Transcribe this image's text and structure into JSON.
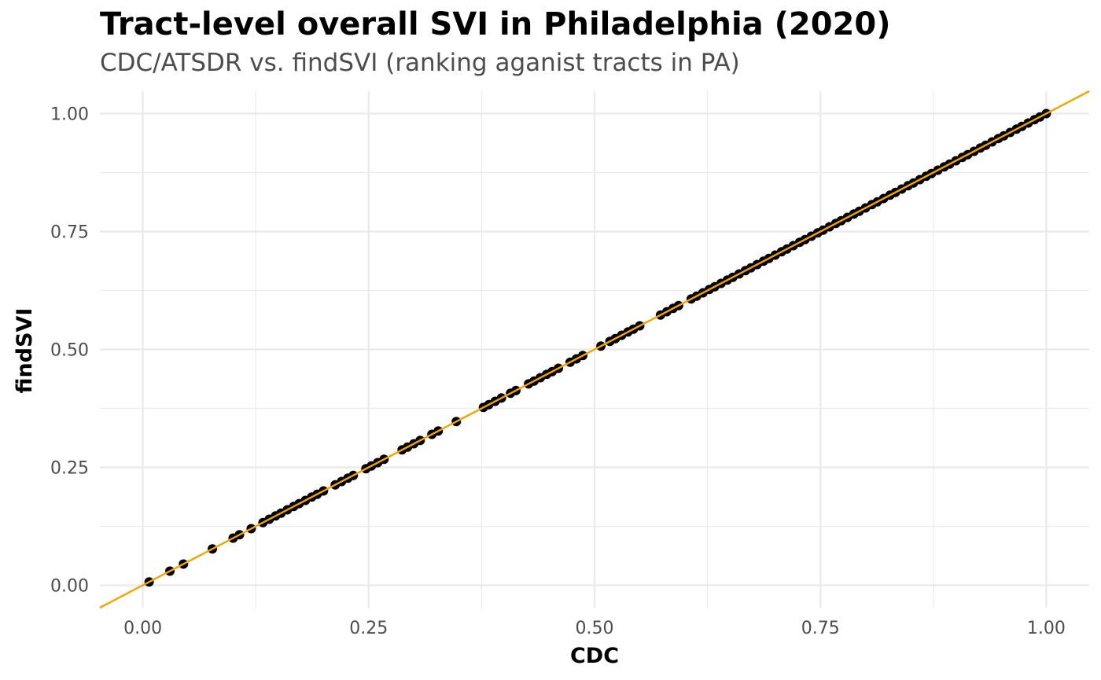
{
  "title": "Tract-level overall SVI in Philadelphia (2020)",
  "subtitle": "CDC/ATSDR vs. findSVI (ranking aganist tracts in PA)",
  "chart_data": {
    "type": "scatter",
    "title": "Tract-level overall SVI in Philadelphia (2020)",
    "subtitle": "CDC/ATSDR vs. findSVI (ranking aganist tracts in PA)",
    "xlabel": "CDC",
    "ylabel": "findSVI",
    "xlim": [
      -0.0475,
      1.0475
    ],
    "ylim": [
      -0.0475,
      1.0475
    ],
    "x_ticks": [
      "0.00",
      "0.25",
      "0.50",
      "0.75",
      "1.00"
    ],
    "y_ticks": [
      "0.00",
      "0.25",
      "0.50",
      "0.75",
      "1.00"
    ],
    "grid": true,
    "reference_line": {
      "slope": 1,
      "intercept": 0,
      "color": "#f5a300"
    },
    "point_color": "#000000",
    "series": [
      {
        "x": [
          0.007,
          0.03,
          0.045,
          0.077,
          0.1,
          0.107,
          0.12,
          0.133,
          0.14,
          0.147,
          0.153,
          0.16,
          0.167,
          0.173,
          0.18,
          0.187,
          0.193,
          0.2,
          0.213,
          0.22,
          0.227,
          0.233,
          0.247,
          0.253,
          0.26,
          0.267,
          0.287,
          0.293,
          0.3,
          0.307,
          0.32,
          0.327,
          0.347,
          0.377,
          0.383,
          0.39,
          0.397,
          0.407,
          0.413,
          0.427,
          0.433,
          0.44,
          0.447,
          0.453,
          0.46,
          0.473,
          0.48,
          0.487,
          0.507,
          0.517,
          0.523,
          0.53,
          0.537,
          0.543,
          0.55,
          0.573,
          0.58,
          0.587,
          0.593,
          0.607,
          0.613,
          0.62,
          0.627,
          0.633,
          0.64,
          0.647,
          0.653,
          0.66,
          0.667,
          0.673,
          0.68,
          0.687,
          0.693,
          0.7,
          0.707,
          0.713,
          0.72,
          0.727,
          0.733,
          0.74,
          0.747,
          0.753,
          0.76,
          0.767,
          0.773,
          0.78,
          0.787,
          0.793,
          0.8,
          0.807,
          0.813,
          0.82,
          0.827,
          0.833,
          0.84,
          0.847,
          0.853,
          0.86,
          0.867,
          0.873,
          0.88,
          0.887,
          0.893,
          0.9,
          0.907,
          0.913,
          0.92,
          0.927,
          0.933,
          0.94,
          0.947,
          0.953,
          0.96,
          0.967,
          0.973,
          0.98,
          0.987,
          0.993,
          1.0
        ],
        "y": [
          0.007,
          0.03,
          0.045,
          0.077,
          0.1,
          0.107,
          0.12,
          0.133,
          0.14,
          0.147,
          0.153,
          0.16,
          0.167,
          0.173,
          0.18,
          0.187,
          0.193,
          0.2,
          0.213,
          0.22,
          0.227,
          0.233,
          0.247,
          0.253,
          0.26,
          0.267,
          0.287,
          0.293,
          0.3,
          0.307,
          0.32,
          0.327,
          0.347,
          0.377,
          0.383,
          0.39,
          0.397,
          0.407,
          0.413,
          0.427,
          0.433,
          0.44,
          0.447,
          0.453,
          0.46,
          0.473,
          0.48,
          0.487,
          0.507,
          0.517,
          0.523,
          0.53,
          0.537,
          0.543,
          0.55,
          0.573,
          0.58,
          0.587,
          0.593,
          0.607,
          0.613,
          0.62,
          0.627,
          0.633,
          0.64,
          0.647,
          0.653,
          0.66,
          0.667,
          0.673,
          0.68,
          0.687,
          0.693,
          0.7,
          0.707,
          0.713,
          0.72,
          0.727,
          0.733,
          0.74,
          0.747,
          0.753,
          0.76,
          0.767,
          0.773,
          0.78,
          0.787,
          0.793,
          0.8,
          0.807,
          0.813,
          0.82,
          0.827,
          0.833,
          0.84,
          0.847,
          0.853,
          0.86,
          0.867,
          0.873,
          0.88,
          0.887,
          0.893,
          0.9,
          0.907,
          0.913,
          0.92,
          0.927,
          0.933,
          0.94,
          0.947,
          0.953,
          0.96,
          0.967,
          0.973,
          0.98,
          0.987,
          0.993,
          1.0
        ]
      }
    ]
  }
}
